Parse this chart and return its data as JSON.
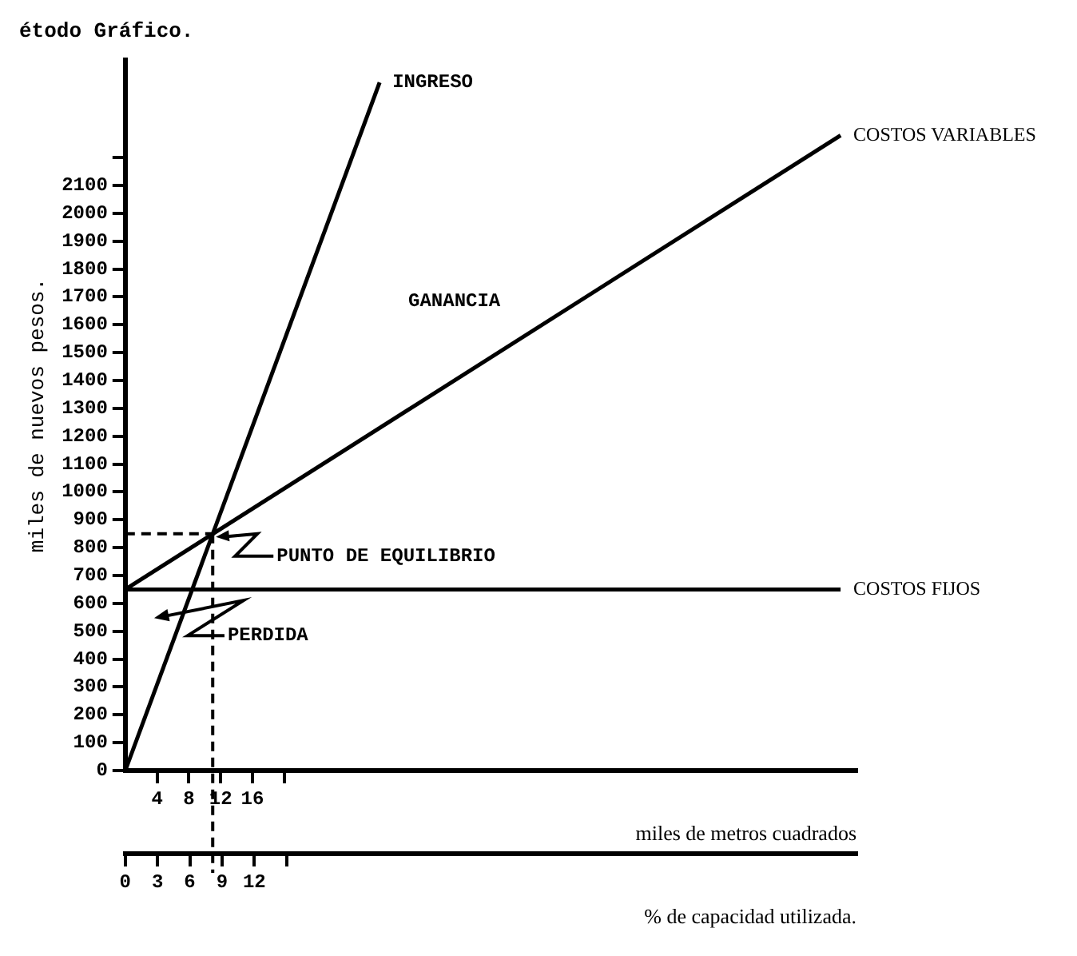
{
  "chart_data": {
    "type": "line",
    "title": "étodo Gráfico.",
    "ylabel": "miles de nuevos pesos.",
    "xlabel": "miles de metros cuadrados",
    "x2label": "% de capacidad utilizada.",
    "series": [
      {
        "name": "INGRESO",
        "color": "#000000",
        "x": [
          0,
          32
        ],
        "values": [
          0,
          2470
        ]
      },
      {
        "name": "COSTOS VARIABLES",
        "color": "#000000",
        "x": [
          0,
          90
        ],
        "values": [
          650,
          2280
        ]
      },
      {
        "name": "COSTOS FIJOS",
        "color": "#000000",
        "x": [
          0,
          90
        ],
        "values": [
          650,
          650
        ]
      }
    ],
    "xlim": [
      0,
      92
    ],
    "xticks": [
      4,
      8,
      12,
      16,
      {
        "value": 20,
        "label": null
      }
    ],
    "x2lim": [
      0,
      68
    ],
    "x2ticks": [
      0,
      3,
      6,
      9,
      12,
      {
        "value": 15,
        "label": null
      }
    ],
    "ylim": [
      0,
      2550
    ],
    "yticks": [
      0,
      100,
      200,
      300,
      400,
      500,
      600,
      700,
      800,
      900,
      1000,
      1100,
      1200,
      1300,
      1400,
      1500,
      1600,
      1700,
      1800,
      1900,
      2000,
      2100,
      {
        "value": 2200,
        "label": null
      }
    ],
    "ref_lines": [
      {
        "axis": "y",
        "value": 850,
        "color": "#000000",
        "line_style": "dashed"
      },
      {
        "axis": "x",
        "value": 11,
        "color": "#000000",
        "line_style": "dashed"
      }
    ],
    "annotations": [
      "GANANCIA",
      {
        "text": "PUNTO DE EQUILIBRIO",
        "x": 11,
        "y": 850
      },
      "PERDIDA"
    ],
    "grid": false,
    "legend": false,
    "marker": "none",
    "line_style": "solid"
  }
}
